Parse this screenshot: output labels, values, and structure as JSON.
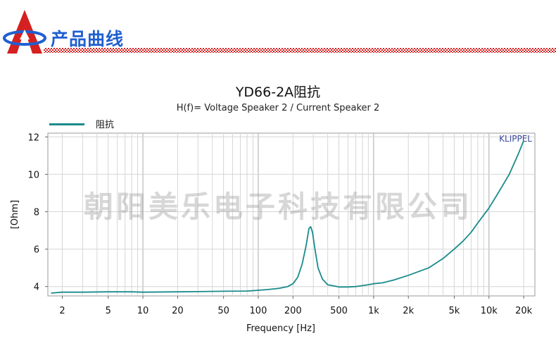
{
  "header": {
    "title": "产品曲线",
    "logo_icon": "triangle-logo-icon",
    "accent_color": "#1f5fd0",
    "rule_color": "#d42020"
  },
  "watermark": "朝阳美乐电子科技有限公司",
  "chart_data": {
    "type": "line",
    "title": "YD66-2A阻抗",
    "subtitle": "H(f)= Voltage Speaker 2 / Current Speaker 2",
    "xlabel": "Frequency [Hz]",
    "ylabel": "[Ohm]",
    "x_scale": "log",
    "xlim": [
      1.5,
      25000
    ],
    "ylim": [
      3.5,
      12.2
    ],
    "x_ticks": [
      {
        "value": 2,
        "label": "2"
      },
      {
        "value": 5,
        "label": "5"
      },
      {
        "value": 10,
        "label": "10"
      },
      {
        "value": 20,
        "label": "20"
      },
      {
        "value": 50,
        "label": "50"
      },
      {
        "value": 100,
        "label": "100"
      },
      {
        "value": 200,
        "label": "200"
      },
      {
        "value": 500,
        "label": "500"
      },
      {
        "value": 1000,
        "label": "1k"
      },
      {
        "value": 2000,
        "label": "2k"
      },
      {
        "value": 5000,
        "label": "5k"
      },
      {
        "value": 10000,
        "label": "10k"
      },
      {
        "value": 20000,
        "label": "20k"
      }
    ],
    "y_ticks": [
      {
        "value": 4,
        "label": "4"
      },
      {
        "value": 6,
        "label": "6"
      },
      {
        "value": 8,
        "label": "8"
      },
      {
        "value": 10,
        "label": "10"
      },
      {
        "value": 12,
        "label": "12"
      }
    ],
    "grid": true,
    "legend_position": "top-left",
    "annotation": "KLIPPEL",
    "series": [
      {
        "name": "阻抗",
        "color": "#1a8a8a",
        "x": [
          1.6,
          2,
          3,
          5,
          8,
          10,
          20,
          30,
          50,
          80,
          100,
          120,
          150,
          180,
          200,
          220,
          240,
          260,
          275,
          285,
          295,
          310,
          330,
          360,
          400,
          500,
          600,
          700,
          800,
          900,
          1000,
          1200,
          1500,
          2000,
          3000,
          4000,
          5000,
          6000,
          7000,
          8000,
          10000,
          12000,
          15000,
          18000,
          20000
        ],
        "y": [
          3.65,
          3.7,
          3.7,
          3.72,
          3.72,
          3.7,
          3.72,
          3.73,
          3.75,
          3.76,
          3.8,
          3.84,
          3.9,
          4.0,
          4.15,
          4.5,
          5.2,
          6.2,
          7.1,
          7.2,
          6.9,
          6.0,
          5.0,
          4.4,
          4.1,
          3.98,
          3.98,
          4.0,
          4.05,
          4.1,
          4.15,
          4.2,
          4.35,
          4.6,
          5.0,
          5.5,
          6.0,
          6.45,
          6.9,
          7.4,
          8.2,
          9.0,
          10.0,
          11.1,
          11.8
        ]
      }
    ]
  }
}
